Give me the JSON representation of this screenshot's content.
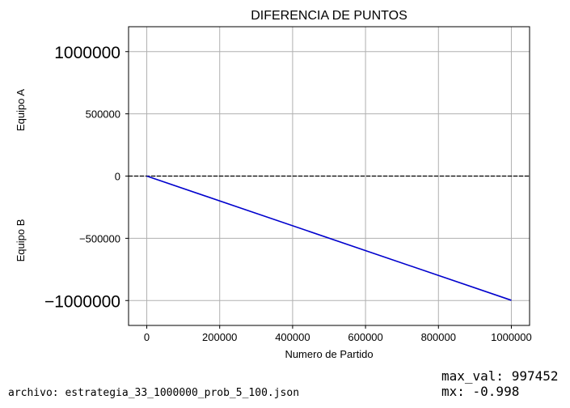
{
  "chart_data": {
    "type": "line",
    "title": "DIFERENCIA DE PUNTOS",
    "xlabel": "Numero de Partido",
    "ylabel_top": "Equipo A",
    "ylabel_bottom": "Equipo B",
    "xlim": [
      -50000,
      1050000
    ],
    "ylim": [
      -1200000,
      1200000
    ],
    "xticks": [
      0,
      200000,
      400000,
      600000,
      800000,
      1000000
    ],
    "xtick_labels": [
      "0",
      "200000",
      "400000",
      "600000",
      "800000",
      "1000000"
    ],
    "yticks": [
      1000000,
      500000,
      0,
      -500000,
      -1000000
    ],
    "ytick_labels": [
      "1000000",
      "500000",
      "0",
      "−500000",
      "−1000000"
    ],
    "grid": true,
    "reference_line": {
      "y": 0,
      "style": "dashed",
      "color": "#000000"
    },
    "series": [
      {
        "x": [
          0,
          1000000
        ],
        "y": [
          0,
          -998000
        ],
        "color": "#0000cd"
      }
    ]
  },
  "footer": {
    "file_label": "archivo: estrategia_33_1000000_prob_5_100.json",
    "max_val": "max_val: 997452",
    "mx": "mx: -0.998"
  }
}
